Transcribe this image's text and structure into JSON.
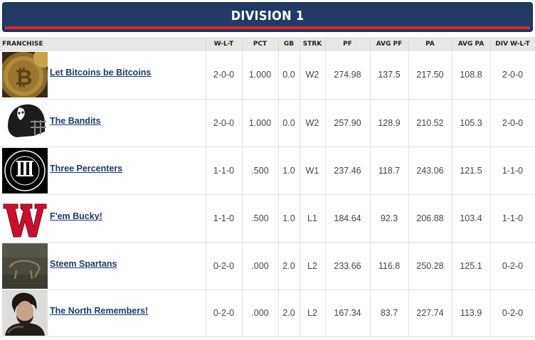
{
  "header": {
    "title": "DIVISION 1"
  },
  "columns": [
    "FRANCHISE",
    "W-L-T",
    "PCT",
    "GB",
    "STRK",
    "PF",
    "AVG PF",
    "PA",
    "AVG PA",
    "DIV W-L-T"
  ],
  "rows": [
    {
      "team": "Let Bitcoins be Bitcoins",
      "logo_icon": "bitcoin-logo-icon",
      "wlt": "2-0-0",
      "pct": "1.000",
      "gb": "0.0",
      "strk": "W2",
      "pf": "274.98",
      "avg_pf": "137.5",
      "pa": "217.50",
      "avg_pa": "108.8",
      "div_wlt": "2-0-0"
    },
    {
      "team": "The Bandits",
      "logo_icon": "football-helmet-logo-icon",
      "wlt": "2-0-0",
      "pct": "1.000",
      "gb": "0.0",
      "strk": "W2",
      "pf": "257.90",
      "avg_pf": "128.9",
      "pa": "210.52",
      "avg_pa": "105.3",
      "div_wlt": "2-0-0"
    },
    {
      "team": "Three Percenters",
      "logo_icon": "roman-numeral-three-logo-icon",
      "wlt": "1-1-0",
      "pct": ".500",
      "gb": "1.0",
      "strk": "W1",
      "pf": "237.46",
      "avg_pf": "118.7",
      "pa": "243.06",
      "avg_pa": "121.5",
      "div_wlt": "1-1-0"
    },
    {
      "team": "F'em Bucky!",
      "logo_icon": "wisconsin-w-logo-icon",
      "wlt": "1-1-0",
      "pct": ".500",
      "gb": "1.0",
      "strk": "L1",
      "pf": "184.64",
      "avg_pf": "92.3",
      "pa": "206.88",
      "avg_pa": "103.4",
      "div_wlt": "1-1-0"
    },
    {
      "team": "Steem Spartans",
      "logo_icon": "cave-painting-logo-icon",
      "wlt": "0-2-0",
      "pct": ".000",
      "gb": "2.0",
      "strk": "L2",
      "pf": "233.66",
      "avg_pf": "116.8",
      "pa": "250.28",
      "avg_pa": "125.1",
      "div_wlt": "0-2-0"
    },
    {
      "team": "The North Remembers!",
      "logo_icon": "jon-snow-portrait-logo-icon",
      "wlt": "0-2-0",
      "pct": ".000",
      "gb": "2.0",
      "strk": "L2",
      "pf": "167.34",
      "avg_pf": "83.7",
      "pa": "227.74",
      "avg_pa": "113.9",
      "div_wlt": "0-2-0"
    }
  ],
  "colors": {
    "header_bg": "#213a66",
    "header_stripe": "#d32a2a",
    "link": "#1e3a66",
    "column_header_bg": "#e7e7e7"
  }
}
